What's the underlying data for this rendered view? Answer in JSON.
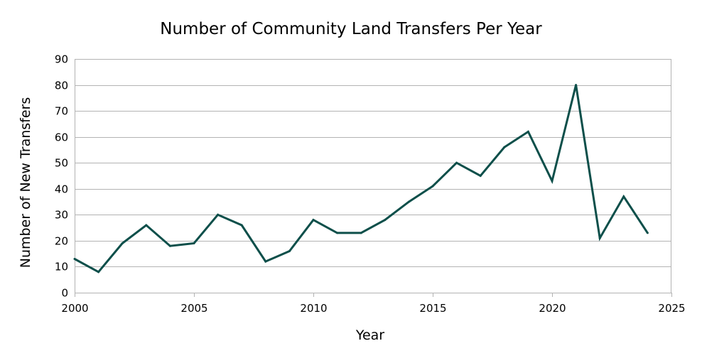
{
  "chart_data": {
    "type": "line",
    "title": "Number of Community Land Transfers Per Year",
    "xlabel": "Year",
    "ylabel": "Number of New Transfers",
    "xlim": [
      2000,
      2025
    ],
    "ylim": [
      0,
      90
    ],
    "x_ticks": [
      2000,
      2005,
      2010,
      2015,
      2020,
      2025
    ],
    "y_ticks": [
      0,
      10,
      20,
      30,
      40,
      50,
      60,
      70,
      80,
      90
    ],
    "grid": true,
    "legend": "none",
    "series": [
      {
        "name": "New Transfers",
        "color": "#0d4f4a",
        "x": [
          2000,
          2001,
          2002,
          2003,
          2004,
          2005,
          2006,
          2007,
          2008,
          2009,
          2010,
          2011,
          2012,
          2013,
          2014,
          2015,
          2016,
          2017,
          2018,
          2019,
          2020,
          2021,
          2022,
          2023,
          2024
        ],
        "values": [
          13,
          8,
          19,
          26,
          18,
          19,
          30,
          26,
          12,
          16,
          28,
          23,
          23,
          28,
          35,
          41,
          50,
          45,
          56,
          62,
          43,
          80,
          21,
          37,
          23
        ]
      }
    ]
  }
}
